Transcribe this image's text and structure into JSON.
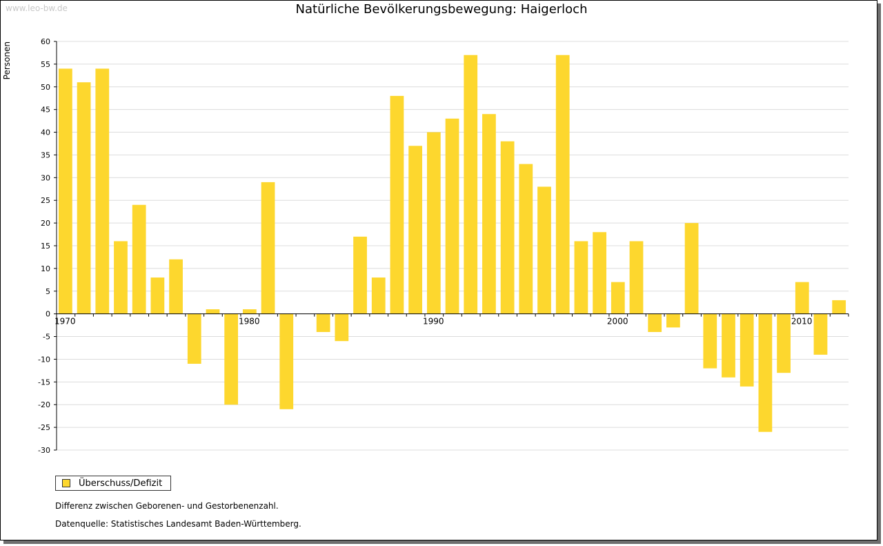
{
  "watermark": "www.leo-bw.de",
  "chart_data": {
    "type": "bar",
    "title": "Natürliche Bevölkerungsbewegung: Haigerloch",
    "ylabel": "Personen",
    "xlabel": "",
    "x_tick_labels": [
      "1970",
      "1980",
      "1990",
      "2000",
      "2010"
    ],
    "categories": [
      1970,
      1971,
      1972,
      1973,
      1974,
      1975,
      1976,
      1977,
      1978,
      1979,
      1980,
      1981,
      1982,
      1983,
      1984,
      1985,
      1986,
      1987,
      1988,
      1989,
      1990,
      1991,
      1992,
      1993,
      1994,
      1995,
      1996,
      1997,
      1998,
      1999,
      2000,
      2001,
      2002,
      2003,
      2004,
      2005,
      2006,
      2007,
      2008,
      2009,
      2010,
      2011,
      2012
    ],
    "series": [
      {
        "name": "Überschuss/Defizit",
        "color": "#fdd72e",
        "values": [
          54,
          51,
          54,
          16,
          24,
          8,
          12,
          -11,
          1,
          -20,
          1,
          29,
          -21,
          0,
          -4,
          -6,
          17,
          8,
          48,
          37,
          40,
          43,
          57,
          44,
          38,
          33,
          28,
          57,
          16,
          18,
          7,
          16,
          -4,
          -3,
          20,
          -12,
          -14,
          -16,
          -26,
          -13,
          7,
          -9,
          3
        ]
      }
    ],
    "ylim": [
      -30,
      60
    ],
    "yticks": [
      -30,
      -25,
      -20,
      -15,
      -10,
      -5,
      0,
      5,
      10,
      15,
      20,
      25,
      30,
      35,
      40,
      45,
      50,
      55,
      60
    ],
    "grid": true,
    "legend_position": "bottom-left"
  },
  "notes": {
    "line1": "Differenz zwischen Geborenen- und Gestorbenenzahl.",
    "line2": "Datenquelle: Statistisches Landesamt Baden-Württemberg."
  }
}
